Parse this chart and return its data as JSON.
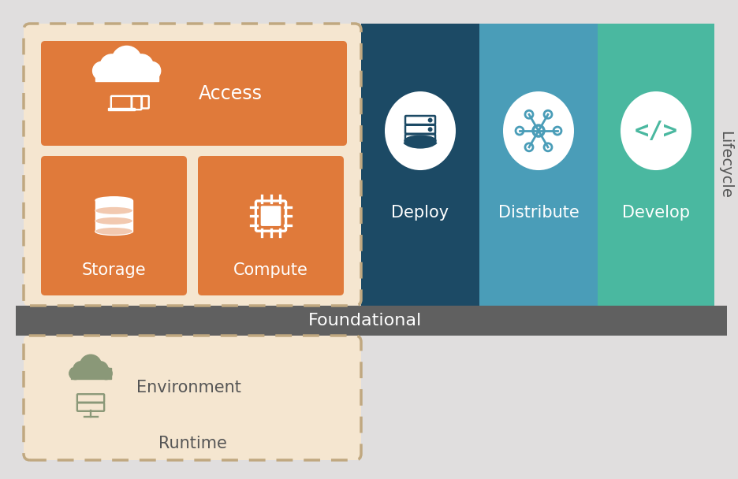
{
  "bg_color": "#e0dede",
  "orange": "#e07a3a",
  "peach_bg": "#f5e6d0",
  "deploy_color": "#1c4a65",
  "distribute_color": "#4a9db8",
  "develop_color": "#4ab8a0",
  "foundational_color": "#606060",
  "white": "#ffffff",
  "text_gray": "#555555",
  "lifecycle_label": "Lifecycle",
  "foundational_label": "Foundational",
  "runtime_label": "Runtime",
  "dashed_color": "#c0a880",
  "right_bg": "#d8d8d8"
}
